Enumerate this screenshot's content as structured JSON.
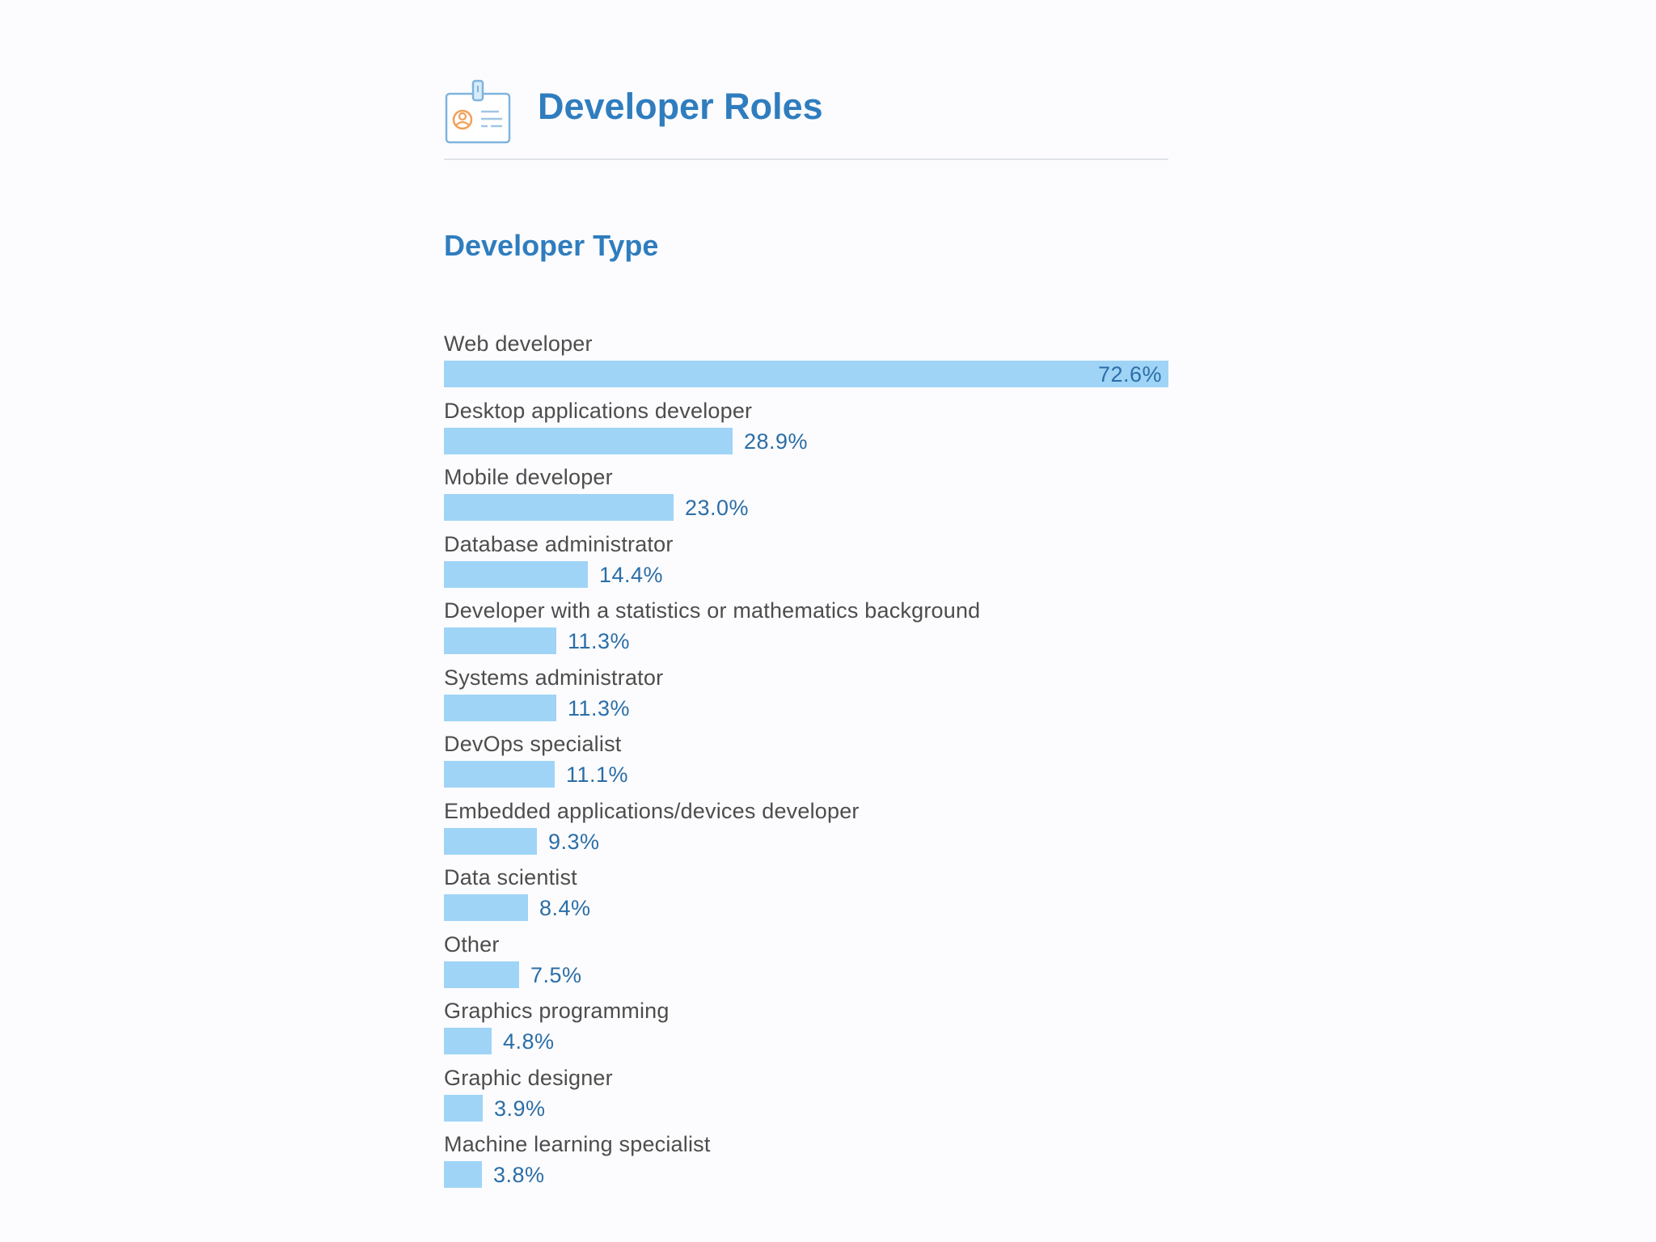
{
  "header": {
    "title": "Developer Roles",
    "icon": "id-badge-icon"
  },
  "colors": {
    "title": "#2f7dbe",
    "bar": "#9fd4f7",
    "value_text": "#2b6ea7",
    "label_text": "#4d4d4d",
    "divider": "#e1e3ea",
    "icon_accent": "#f0a05a"
  },
  "chart_data": {
    "type": "bar",
    "orientation": "horizontal",
    "title": "Developer Type",
    "unit": "%",
    "xlim": [
      0,
      72.6
    ],
    "grid": false,
    "legend": "none",
    "categories": [
      "Web developer",
      "Desktop applications developer",
      "Mobile developer",
      "Database administrator",
      "Developer with a statistics or mathematics background",
      "Systems administrator",
      "DevOps specialist",
      "Embedded applications/devices developer",
      "Data scientist",
      "Other",
      "Graphics programming",
      "Graphic designer",
      "Machine learning specialist"
    ],
    "values": [
      72.6,
      28.9,
      23.0,
      14.4,
      11.3,
      11.3,
      11.1,
      9.3,
      8.4,
      7.5,
      4.8,
      3.9,
      3.8
    ],
    "labels": [
      "72.6%",
      "28.9%",
      "23.0%",
      "14.4%",
      "11.3%",
      "11.3%",
      "11.1%",
      "9.3%",
      "8.4%",
      "7.5%",
      "4.8%",
      "3.9%",
      "3.8%"
    ]
  }
}
